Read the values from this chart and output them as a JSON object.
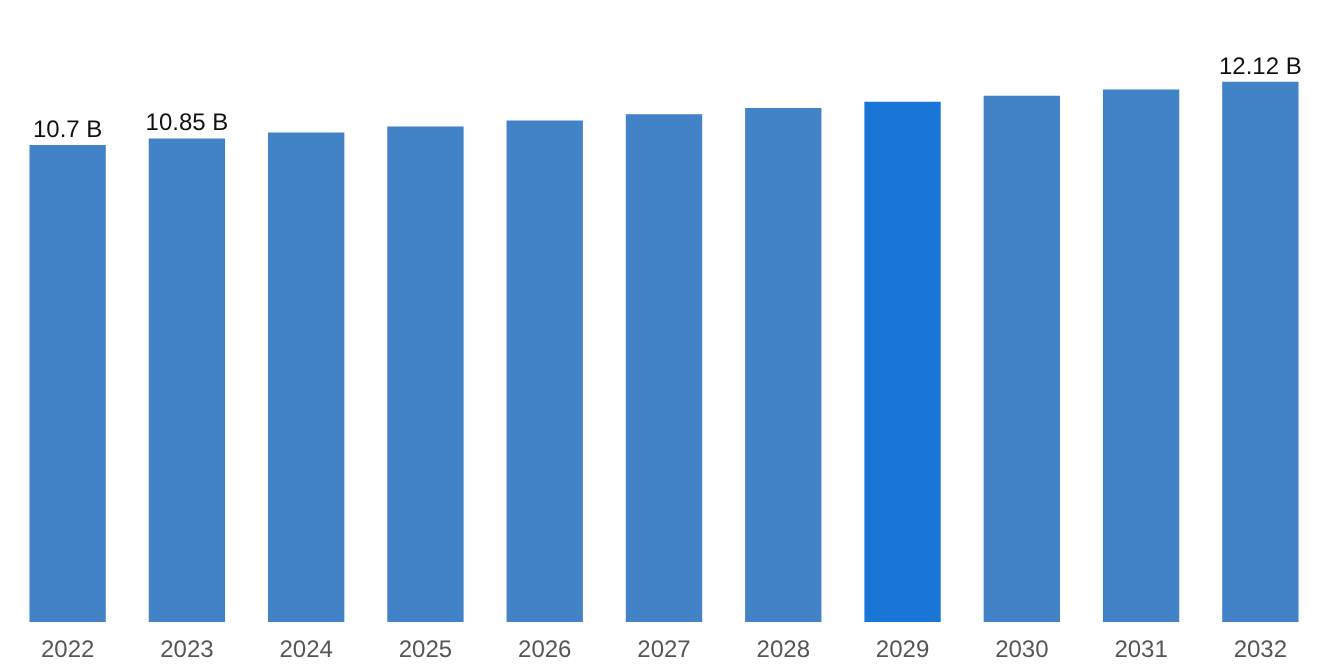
{
  "chart_data": {
    "type": "bar",
    "categories": [
      "2022",
      "2023",
      "2024",
      "2025",
      "2026",
      "2027",
      "2028",
      "2029",
      "2030",
      "2031",
      "2032"
    ],
    "values": [
      10.7,
      10.85,
      10.98,
      11.12,
      11.25,
      11.39,
      11.53,
      11.67,
      11.81,
      11.95,
      12.12
    ],
    "colors": [
      "#4282c6",
      "#4282c6",
      "#4282c6",
      "#4282c6",
      "#4282c6",
      "#4282c6",
      "#4282c6",
      "#1a76d6",
      "#4282c6",
      "#4282c6",
      "#4282c6"
    ],
    "value_labels": [
      "10.7 B",
      "10.85 B",
      null,
      null,
      null,
      null,
      null,
      null,
      null,
      null,
      "12.12 B"
    ],
    "grid": false,
    "tick_labels": "x"
  }
}
